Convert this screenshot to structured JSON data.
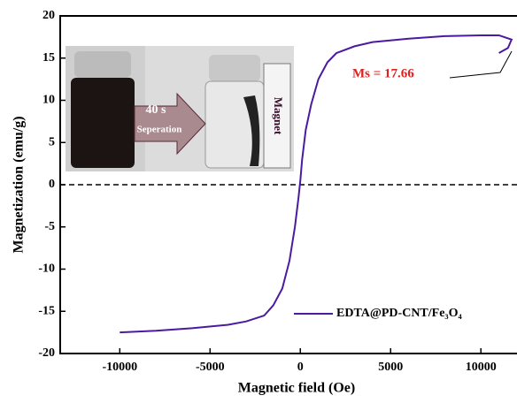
{
  "chart_data": {
    "type": "line",
    "x_label": "Magnetic field (Oe)",
    "y_label": "Magnetization (emu/g)",
    "xlim": [
      -13300,
      12000
    ],
    "ylim": [
      -20,
      20
    ],
    "xticks": [
      -10000,
      -5000,
      0,
      5000,
      10000
    ],
    "yticks": [
      -20,
      -15,
      -10,
      -5,
      0,
      5,
      10,
      15,
      20
    ],
    "legend": "lower right",
    "zero_line": true,
    "x": [
      -10000,
      -8000,
      -6000,
      -4000,
      -3000,
      -2000,
      -1500,
      -1000,
      -600,
      -300,
      -100,
      0,
      100,
      300,
      600,
      1000,
      1500,
      2000,
      3000,
      4000,
      6000,
      8000,
      10000,
      11000,
      11700,
      11500,
      11000
    ],
    "series": [
      {
        "name": "EDTA@PD-CNT/Fe₃O₄",
        "color": "#4b1a9e",
        "values": [
          -17.5,
          -17.3,
          -17,
          -16.6,
          -16.2,
          -15.5,
          -14.3,
          -12.3,
          -9,
          -5,
          -1.5,
          0.5,
          3,
          6.5,
          9.5,
          12.5,
          14.5,
          15.6,
          16.4,
          16.9,
          17.3,
          17.6,
          17.7,
          17.7,
          17.2,
          16.2,
          15.6
        ]
      }
    ],
    "annotations": [
      "Ms = 17.66",
      "40 s",
      "Seperation",
      "Magnet"
    ]
  }
}
